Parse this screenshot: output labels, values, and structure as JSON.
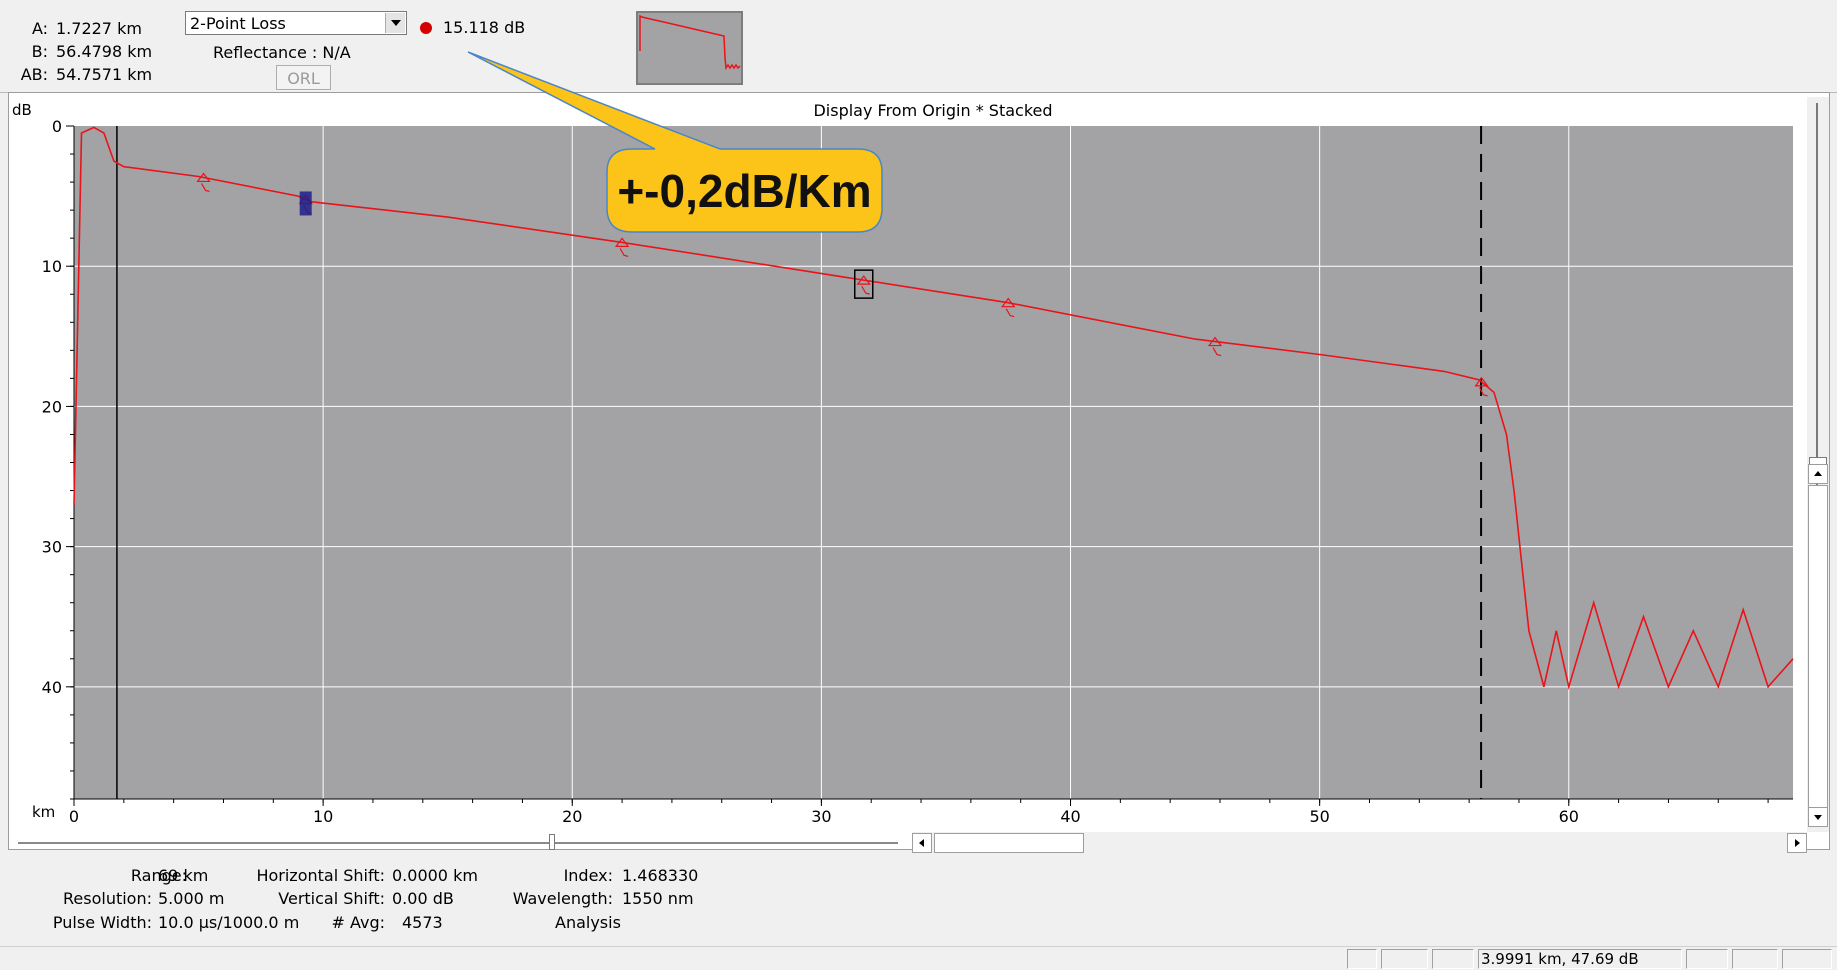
{
  "cursors": {
    "a_label": "A:",
    "a_value": "1.7227 km",
    "b_label": "B:",
    "b_value": "56.4798 km",
    "ab_label": "AB:",
    "ab_value": "54.7571 km"
  },
  "measure": {
    "mode": "2-Point Loss",
    "loss_value": "15.118 dB",
    "reflectance": "Reflectance :  N/A",
    "orl_button": "ORL"
  },
  "graph": {
    "title": "Display From Origin * Stacked",
    "y_unit": "dB",
    "x_unit": "km"
  },
  "callout": {
    "text": "+-0,2dB/Km",
    "color": "#fcc419"
  },
  "settings": {
    "range_label": "Range:",
    "range_value": "69 km",
    "resolution_label": "Resolution:",
    "resolution_value": "5.000 m",
    "pulse_label": "Pulse Width:",
    "pulse_value": "10.0 µs/1000.0 m",
    "hshift_label": "Horizontal Shift:",
    "hshift_value": "0.0000 km",
    "vshift_label": "Vertical Shift:",
    "vshift_value": "0.00 dB",
    "avg_label": "# Avg:",
    "avg_value": "4573",
    "index_label": "Index:",
    "index_value": "1.468330",
    "wavelength_label": "Wavelength:",
    "wavelength_value": "1550 nm",
    "analysis_label": "Analysis"
  },
  "status": {
    "coords": "3.9991 km, 47.69 dB"
  },
  "colors": {
    "trace": "#e8141a",
    "plot_bg": "#a3a3a6",
    "grid": "#ffffff"
  },
  "chart_data": {
    "type": "line",
    "title": "Display From Origin * Stacked",
    "xlabel": "km",
    "ylabel": "dB",
    "xlim": [
      0,
      69
    ],
    "ylim": [
      0,
      48
    ],
    "y_inverted": true,
    "x_ticks": [
      0,
      10,
      20,
      30,
      40,
      50,
      60
    ],
    "y_ticks": [
      0,
      10,
      20,
      30,
      40
    ],
    "grid": true,
    "series": [
      {
        "x": [
          0,
          0.3,
          0.8,
          1.2,
          1.6,
          2.0,
          5.0,
          9.0,
          9.5,
          15.0,
          22.0,
          31.0,
          37.5,
          45.0,
          50.0,
          55.0,
          56.4,
          57.0,
          57.5,
          57.8,
          58.1,
          58.4,
          58.7,
          59.0,
          59.5,
          60.0,
          61.0,
          62.0,
          63.0,
          64.0,
          65.0,
          66.0,
          67.0,
          68.0,
          69.0
        ],
        "y": [
          27,
          0.5,
          0.1,
          0.5,
          2.5,
          2.9,
          3.6,
          5.0,
          5.4,
          6.5,
          8.3,
          10.8,
          12.6,
          15.2,
          16.3,
          17.5,
          18.1,
          19.0,
          22.0,
          26.0,
          31.0,
          36.0,
          38.0,
          40.0,
          36.0,
          40.0,
          34.0,
          40.0,
          35.0,
          40.0,
          36.0,
          40.0,
          34.5,
          40.0,
          38.0
        ]
      }
    ],
    "events_km": [
      5.2,
      9.3,
      22.0,
      31.7,
      37.5,
      45.8,
      56.5
    ],
    "markers": {
      "A_km": 1.7227,
      "B_km": 56.4798
    }
  }
}
